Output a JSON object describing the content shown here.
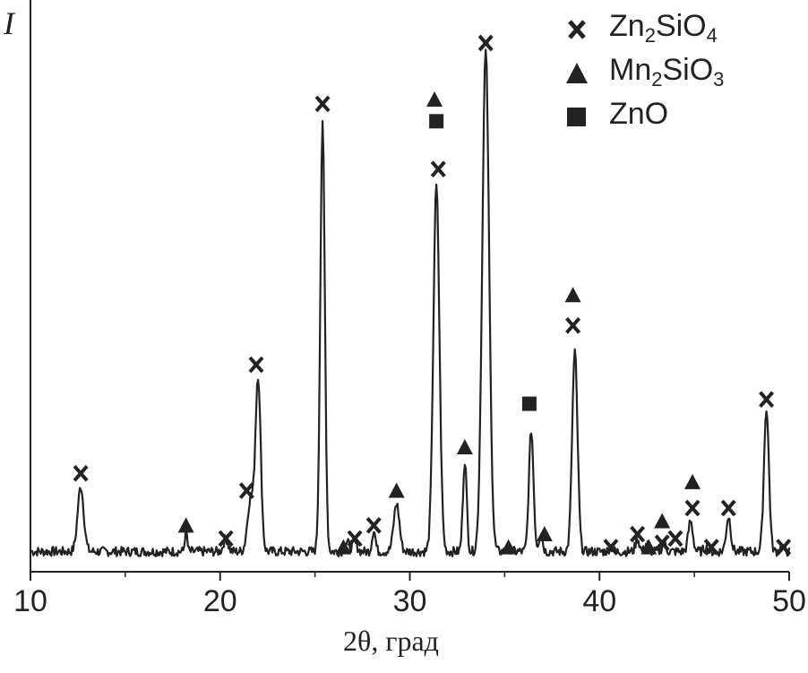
{
  "chart_data": {
    "type": "line",
    "ylabel": "I",
    "xlabel": "2θ, град",
    "xlim": [
      10,
      50
    ],
    "x_ticks": [
      "10",
      "20",
      "30",
      "40",
      "50"
    ],
    "y_ticks_shown": false,
    "grid": false,
    "legend_position": "top-right",
    "legend": [
      {
        "marker": "x",
        "label_main": "Zn",
        "sub1": "2",
        "mid": "SiO",
        "sub2": "4"
      },
      {
        "marker": "triangle",
        "label_main": "Mn",
        "sub1": "2",
        "mid": "SiO",
        "sub2": "3"
      },
      {
        "marker": "square",
        "label_main": "ZnO",
        "sub1": "",
        "mid": "",
        "sub2": ""
      }
    ],
    "baseline": 3,
    "peaks": [
      {
        "x": 12.65,
        "y": 15,
        "w": 0.16
      },
      {
        "x": 18.2,
        "y": 5,
        "w": 0.06
      },
      {
        "x": 20.3,
        "y": 3,
        "w": 0.12
      },
      {
        "x": 21.6,
        "y": 12,
        "w": 0.16
      },
      {
        "x": 22.0,
        "y": 40,
        "w": 0.14
      },
      {
        "x": 25.4,
        "y": 98,
        "w": 0.12
      },
      {
        "x": 26.7,
        "y": 2,
        "w": 0.12
      },
      {
        "x": 27.1,
        "y": 2,
        "w": 0.12
      },
      {
        "x": 28.1,
        "y": 5,
        "w": 0.09
      },
      {
        "x": 29.3,
        "y": 11,
        "w": 0.15
      },
      {
        "x": 31.4,
        "y": 84,
        "w": 0.16
      },
      {
        "x": 32.9,
        "y": 21,
        "w": 0.1
      },
      {
        "x": 34.0,
        "y": 115,
        "w": 0.18
      },
      {
        "x": 35.2,
        "y": 1,
        "w": 0.1
      },
      {
        "x": 36.4,
        "y": 28,
        "w": 0.12
      },
      {
        "x": 36.9,
        "y": 4,
        "w": 0.1
      },
      {
        "x": 38.7,
        "y": 46,
        "w": 0.14
      },
      {
        "x": 40.6,
        "y": 1,
        "w": 0.1
      },
      {
        "x": 42.0,
        "y": 3,
        "w": 0.1
      },
      {
        "x": 42.5,
        "y": 2,
        "w": 0.1
      },
      {
        "x": 43.4,
        "y": 2,
        "w": 0.1
      },
      {
        "x": 44.8,
        "y": 7,
        "w": 0.12
      },
      {
        "x": 45.6,
        "y": 1,
        "w": 0.1
      },
      {
        "x": 46.8,
        "y": 8,
        "w": 0.12
      },
      {
        "x": 48.8,
        "y": 33,
        "w": 0.13
      },
      {
        "x": 49.6,
        "y": 1,
        "w": 0.1
      }
    ],
    "annotations": [
      {
        "marker": "x",
        "x": 12.65,
        "y": 21
      },
      {
        "marker": "triangle",
        "x": 18.2,
        "y": 9
      },
      {
        "marker": "x",
        "x": 20.3,
        "y": 6
      },
      {
        "marker": "x",
        "x": 21.4,
        "y": 17
      },
      {
        "marker": "x",
        "x": 21.9,
        "y": 46
      },
      {
        "marker": "x",
        "x": 25.4,
        "y": 106
      },
      {
        "marker": "triangle",
        "x": 26.5,
        "y": 4
      },
      {
        "marker": "x",
        "x": 27.1,
        "y": 6
      },
      {
        "marker": "x",
        "x": 28.1,
        "y": 9
      },
      {
        "marker": "triangle",
        "x": 29.3,
        "y": 17
      },
      {
        "marker": "triangle",
        "x": 31.3,
        "y": 107
      },
      {
        "marker": "square",
        "x": 31.4,
        "y": 102
      },
      {
        "marker": "x",
        "x": 31.5,
        "y": 91
      },
      {
        "marker": "triangle",
        "x": 32.9,
        "y": 27
      },
      {
        "marker": "x",
        "x": 34.0,
        "y": 120
      },
      {
        "marker": "triangle",
        "x": 35.2,
        "y": 4
      },
      {
        "marker": "square",
        "x": 36.3,
        "y": 37
      },
      {
        "marker": "triangle",
        "x": 37.1,
        "y": 7
      },
      {
        "marker": "triangle",
        "x": 38.6,
        "y": 62
      },
      {
        "marker": "x",
        "x": 38.6,
        "y": 55
      },
      {
        "marker": "x",
        "x": 40.6,
        "y": 4
      },
      {
        "marker": "x",
        "x": 42.0,
        "y": 7
      },
      {
        "marker": "triangle",
        "x": 42.6,
        "y": 4
      },
      {
        "marker": "triangle",
        "x": 43.3,
        "y": 10
      },
      {
        "marker": "x",
        "x": 43.3,
        "y": 5
      },
      {
        "marker": "x",
        "x": 44.0,
        "y": 6
      },
      {
        "marker": "triangle",
        "x": 44.9,
        "y": 19
      },
      {
        "marker": "x",
        "x": 44.9,
        "y": 13
      },
      {
        "marker": "x",
        "x": 45.9,
        "y": 4
      },
      {
        "marker": "x",
        "x": 46.8,
        "y": 13
      },
      {
        "marker": "x",
        "x": 48.8,
        "y": 38
      },
      {
        "marker": "x",
        "x": 49.7,
        "y": 4
      }
    ]
  }
}
